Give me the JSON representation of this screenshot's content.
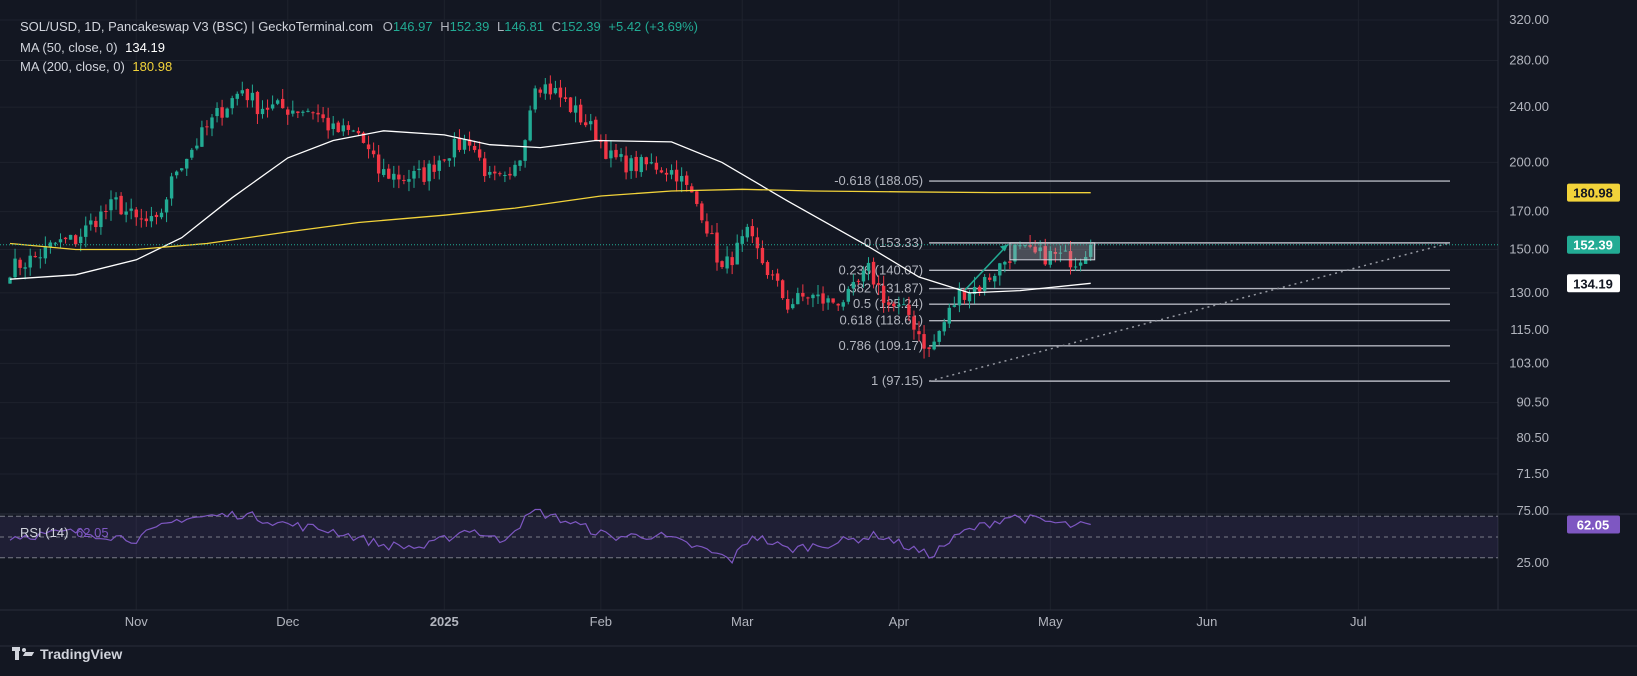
{
  "header": {
    "symbol": "SOL/USD, 1D, Pancakeswap V3 (BSC) | GeckoTerminal.com",
    "o_label": "O",
    "o_value": "146.97",
    "h_label": "H",
    "h_value": "152.39",
    "l_label": "L",
    "l_value": "146.81",
    "c_label": "C",
    "c_value": "152.39",
    "change": "+5.42 (+3.69%)",
    "ma50_label": "MA (50, close, 0)",
    "ma50_value": "134.19",
    "ma200_label": "MA (200, close, 0)",
    "ma200_value": "180.98",
    "rsi_label": "RSI (14)",
    "rsi_value": "62.05"
  },
  "brand": "TradingView",
  "colors": {
    "up": "#22ab94",
    "down": "#f23645",
    "ma50": "#ffffff",
    "ma200": "#f2d33a",
    "rsi": "#7e57c2",
    "fib": "#b2b5be"
  },
  "chart_data": [
    {
      "type": "line",
      "title": "SOL/USD, 1D, Pancakeswap V3 (BSC)",
      "y_scale": "log",
      "y_ticks": [
        "320.00",
        "280.00",
        "240.00",
        "200.00",
        "170.00",
        "150.00",
        "130.00",
        "115.00",
        "103.00",
        "90.50",
        "80.50",
        "71.50"
      ],
      "x_ticks": [
        "Nov",
        "Dec",
        "2025",
        "Feb",
        "Mar",
        "Apr",
        "May",
        "Jun",
        "Jul"
      ],
      "last_price": "152.39",
      "price_labels": [
        "180.98",
        "152.39",
        "134.19"
      ],
      "series": [
        {
          "name": "MA (50, close, 0)",
          "color": "#ffffff",
          "points": [
            [
              "2024-10-07",
              136
            ],
            [
              "2024-10-20",
              138
            ],
            [
              "2024-11-01",
              145
            ],
            [
              "2024-11-10",
              156
            ],
            [
              "2024-11-20",
              178
            ],
            [
              "2024-12-01",
              203
            ],
            [
              "2024-12-10",
              215
            ],
            [
              "2024-12-20",
              222
            ],
            [
              "2025-01-01",
              219
            ],
            [
              "2025-01-10",
              212
            ],
            [
              "2025-01-20",
              210
            ],
            [
              "2025-01-31",
              215
            ],
            [
              "2025-02-15",
              214
            ],
            [
              "2025-02-25",
              200
            ],
            [
              "2025-03-10",
              176
            ],
            [
              "2025-03-25",
              153
            ],
            [
              "2025-04-05",
              137
            ],
            [
              "2025-04-15",
              130
            ],
            [
              "2025-04-25",
              131
            ],
            [
              "2025-05-09",
              134.19
            ]
          ]
        },
        {
          "name": "MA (200, close, 0)",
          "color": "#f2d33a",
          "points": [
            [
              "2024-10-07",
              153
            ],
            [
              "2024-10-20",
              150
            ],
            [
              "2024-11-01",
              150
            ],
            [
              "2024-11-15",
              153
            ],
            [
              "2024-12-01",
              159
            ],
            [
              "2024-12-15",
              164
            ],
            [
              "2025-01-01",
              168
            ],
            [
              "2025-01-15",
              172
            ],
            [
              "2025-02-01",
              179
            ],
            [
              "2025-02-15",
              182
            ],
            [
              "2025-03-01",
              183
            ],
            [
              "2025-03-15",
              182
            ],
            [
              "2025-04-01",
              181.5
            ],
            [
              "2025-04-20",
              181
            ],
            [
              "2025-05-09",
              180.98
            ]
          ]
        }
      ],
      "ohlc_midpoints": [
        [
          "2024-10-07",
          141
        ],
        [
          "2024-10-12",
          146
        ],
        [
          "2024-10-16",
          153
        ],
        [
          "2024-10-20",
          155
        ],
        [
          "2024-10-24",
          166
        ],
        [
          "2024-10-28",
          175
        ],
        [
          "2024-11-01",
          165
        ],
        [
          "2024-11-05",
          163
        ],
        [
          "2024-11-09",
          196
        ],
        [
          "2024-11-13",
          214
        ],
        [
          "2024-11-17",
          234
        ],
        [
          "2024-11-22",
          255
        ],
        [
          "2024-11-25",
          241
        ],
        [
          "2024-11-30",
          239
        ],
        [
          "2024-12-06",
          238
        ],
        [
          "2024-12-10",
          222
        ],
        [
          "2024-12-15",
          220
        ],
        [
          "2024-12-19",
          194
        ],
        [
          "2024-12-24",
          190
        ],
        [
          "2024-12-28",
          192
        ],
        [
          "2025-01-01",
          206
        ],
        [
          "2025-01-06",
          216
        ],
        [
          "2025-01-10",
          189
        ],
        [
          "2025-01-14",
          187
        ],
        [
          "2025-01-16",
          204
        ],
        [
          "2025-01-19",
          262
        ],
        [
          "2025-01-23",
          252
        ],
        [
          "2025-01-27",
          236
        ],
        [
          "2025-01-31",
          220
        ],
        [
          "2025-02-03",
          203
        ],
        [
          "2025-02-07",
          198
        ],
        [
          "2025-02-12",
          198
        ],
        [
          "2025-02-16",
          193
        ],
        [
          "2025-02-21",
          170
        ],
        [
          "2025-02-25",
          140
        ],
        [
          "2025-03-02",
          157
        ],
        [
          "2025-03-06",
          140
        ],
        [
          "2025-03-10",
          125
        ],
        [
          "2025-03-14",
          129
        ],
        [
          "2025-03-18",
          126
        ],
        [
          "2025-03-22",
          128
        ],
        [
          "2025-03-26",
          140
        ],
        [
          "2025-03-30",
          125
        ],
        [
          "2025-04-03",
          121
        ],
        [
          "2025-04-07",
          107
        ],
        [
          "2025-04-10",
          118
        ],
        [
          "2025-04-13",
          130
        ],
        [
          "2025-04-17",
          133
        ],
        [
          "2025-04-21",
          142
        ],
        [
          "2025-04-24",
          150
        ],
        [
          "2025-04-28",
          147
        ],
        [
          "2025-05-02",
          147
        ],
        [
          "2025-05-06",
          145
        ],
        [
          "2025-05-09",
          152.39
        ]
      ],
      "fibonacci": [
        {
          "label": "-0.618 (188.05)",
          "value": 188.05
        },
        {
          "label": "0 (153.33)",
          "value": 153.33
        },
        {
          "label": "0.236 (140.07)",
          "value": 140.07
        },
        {
          "label": "0.382 (131.87)",
          "value": 131.87
        },
        {
          "label": "0.5 (125.24)",
          "value": 125.24
        },
        {
          "label": "0.618 (118.61)",
          "value": 118.61
        },
        {
          "label": "0.786 (109.17)",
          "value": 109.17
        },
        {
          "label": "1 (97.15)",
          "value": 97.15
        }
      ]
    },
    {
      "type": "line",
      "title": "RSI (14)",
      "y_ticks": [
        "75.00",
        "25.00"
      ],
      "last_value": "62.05",
      "series": [
        {
          "name": "RSI (14)",
          "color": "#7e57c2",
          "points": [
            [
              "2024-10-07",
              50
            ],
            [
              "2024-10-20",
              55
            ],
            [
              "2024-11-01",
              48
            ],
            [
              "2024-11-10",
              68
            ],
            [
              "2024-11-22",
              72
            ],
            [
              "2024-12-01",
              62
            ],
            [
              "2024-12-10",
              56
            ],
            [
              "2024-12-20",
              42
            ],
            [
              "2024-12-28",
              40
            ],
            [
              "2025-01-06",
              58
            ],
            [
              "2025-01-12",
              46
            ],
            [
              "2025-01-19",
              75
            ],
            [
              "2025-01-26",
              64
            ],
            [
              "2025-02-03",
              50
            ],
            [
              "2025-02-12",
              52
            ],
            [
              "2025-02-20",
              40
            ],
            [
              "2025-02-27",
              28
            ],
            [
              "2025-03-03",
              52
            ],
            [
              "2025-03-10",
              38
            ],
            [
              "2025-03-20",
              45
            ],
            [
              "2025-03-28",
              52
            ],
            [
              "2025-04-07",
              32
            ],
            [
              "2025-04-14",
              55
            ],
            [
              "2025-04-23",
              70
            ],
            [
              "2025-04-30",
              65
            ],
            [
              "2025-05-06",
              60
            ],
            [
              "2025-05-09",
              62.05
            ]
          ]
        }
      ]
    }
  ]
}
